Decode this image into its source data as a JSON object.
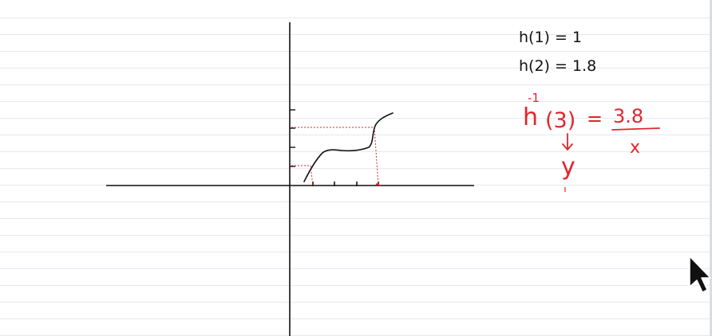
{
  "notes": {
    "line1": "h(1) = 1",
    "line2": "h(2) = 1.8",
    "inverse": {
      "prefix": "h",
      "superscript": "-1",
      "argument": "(3)",
      "equals": "=",
      "numerator": "3.8",
      "denominator": "x",
      "arrow_target": "y"
    }
  },
  "colors": {
    "ink": "#111111",
    "red_ink": "#e0262d",
    "ruled_line": "#e4e9ef",
    "guide": "#e0262d"
  },
  "cursor": {
    "icon": "mouse-pointer-icon"
  }
}
